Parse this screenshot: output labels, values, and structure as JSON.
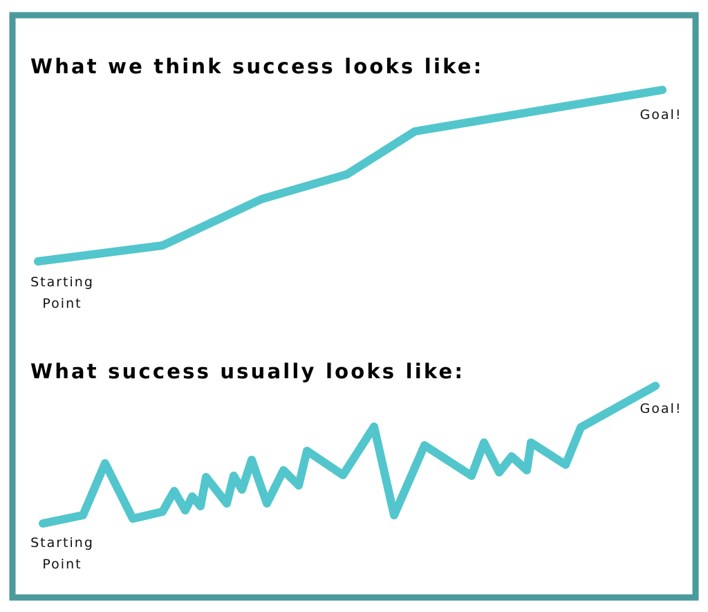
{
  "sections": [
    {
      "title": "What we think success looks like:",
      "start_label": [
        "Starting",
        "Point"
      ],
      "end_label": "Goal!"
    },
    {
      "title": "What success usually looks like:",
      "start_label": [
        "Starting",
        "Point"
      ],
      "end_label": "Goal!"
    }
  ]
}
